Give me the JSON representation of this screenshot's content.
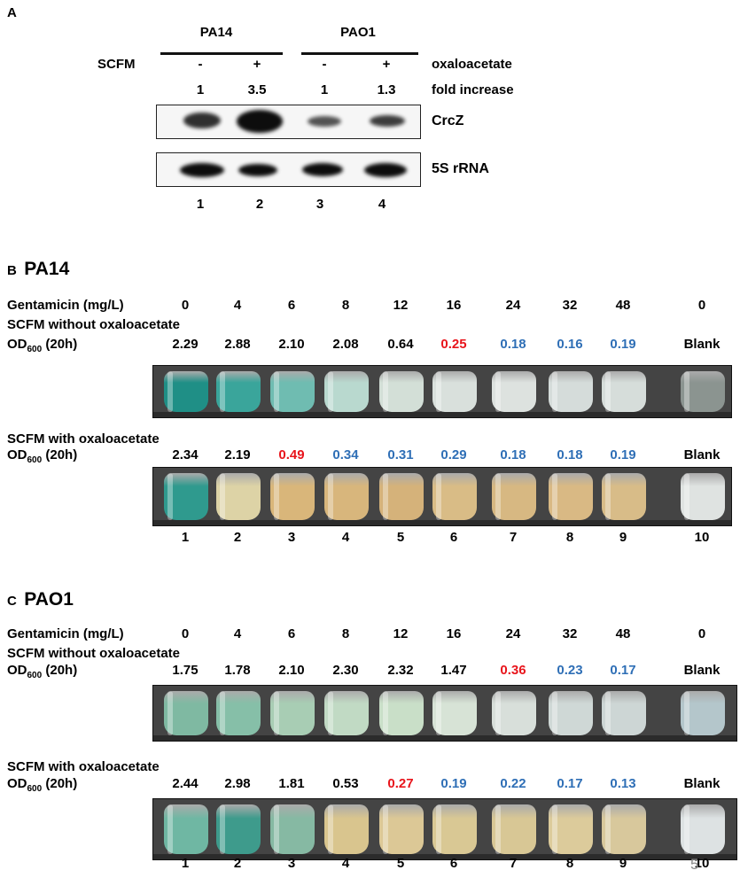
{
  "panelA": {
    "letter": "A",
    "strains": [
      "PA14",
      "PAO1"
    ],
    "scfm_label": "SCFM",
    "signs": [
      "-",
      "+",
      "-",
      "+"
    ],
    "oxaloacetate_label": "oxaloacetate",
    "folds": [
      "1",
      "3.5",
      "1",
      "1.3"
    ],
    "fold_label": "fold increase",
    "blot_labels": [
      "CrcZ",
      "5S rRNA"
    ],
    "lanes": [
      "1",
      "2",
      "3",
      "4"
    ]
  },
  "panelB": {
    "letter": "B",
    "title": "PA14",
    "gent_label": "Gentamicin (mg/L)",
    "gent_values": [
      "0",
      "4",
      "6",
      "8",
      "12",
      "16",
      "24",
      "32",
      "48",
      "0"
    ],
    "without_label": "SCFM without oxaloacetate",
    "od_label": "OD",
    "od_sub": "600",
    "od_suffix": " (20h)",
    "without_ods": [
      "2.29",
      "2.88",
      "2.10",
      "2.08",
      "0.64",
      "0.25",
      "0.18",
      "0.16",
      "0.19",
      "Blank"
    ],
    "with_label": "SCFM with oxaloacetate",
    "with_ods": [
      "2.34",
      "2.19",
      "0.49",
      "0.34",
      "0.31",
      "0.29",
      "0.18",
      "0.18",
      "0.19",
      "Blank"
    ],
    "tubes": [
      "1",
      "2",
      "3",
      "4",
      "5",
      "6",
      "7",
      "8",
      "9",
      "10"
    ]
  },
  "panelC": {
    "letter": "C",
    "title": "PAO1",
    "gent_label": "Gentamicin (mg/L)",
    "gent_values": [
      "0",
      "4",
      "6",
      "8",
      "12",
      "16",
      "24",
      "32",
      "48",
      "0"
    ],
    "without_label": "SCFM without oxaloacetate",
    "od_label": "OD",
    "od_sub": "600",
    "od_suffix": " (20h)",
    "without_ods": [
      "1.75",
      "1.78",
      "2.10",
      "2.30",
      "2.32",
      "1.47",
      "0.36",
      "0.23",
      "0.17",
      "Blank"
    ],
    "with_label": "SCFM with oxaloacetate",
    "with_ods": [
      "2.44",
      "2.98",
      "1.81",
      "0.53",
      "0.27",
      "0.19",
      "0.22",
      "0.17",
      "0.13",
      "Blank"
    ],
    "tubes": [
      "1",
      "2",
      "3",
      "4",
      "5",
      "6",
      "7",
      "8",
      "9",
      "10"
    ],
    "page_number": "5"
  },
  "colors": {
    "red": "#e8141b",
    "blue": "#2f6fb6",
    "black": "#000000"
  },
  "value_colors": {
    "panelB_without": [
      "black",
      "black",
      "black",
      "black",
      "black",
      "red",
      "blue",
      "blue",
      "blue",
      "black"
    ],
    "panelB_with": [
      "black",
      "black",
      "red",
      "blue",
      "blue",
      "blue",
      "blue",
      "blue",
      "blue",
      "black"
    ],
    "panelC_without": [
      "black",
      "black",
      "black",
      "black",
      "black",
      "black",
      "red",
      "blue",
      "blue",
      "black"
    ],
    "panelC_with": [
      "black",
      "black",
      "black",
      "black",
      "red",
      "blue",
      "blue",
      "blue",
      "blue",
      "black"
    ]
  },
  "tube_colors": {
    "panelB_without": [
      "#1f8f86",
      "#3aa59b",
      "#6fbcb1",
      "#b9d9cf",
      "#d3dfd7",
      "#d9e0dc",
      "#dde2df",
      "#d5dcda",
      "#d6ddda",
      "#8b9490"
    ],
    "panelB_with": [
      "#2f9a8e",
      "#ddd3a6",
      "#d9b67a",
      "#d8b67c",
      "#d5b27a",
      "#d9bc86",
      "#d7b882",
      "#d9b984",
      "#d8bc88",
      "#dfe3e1"
    ],
    "panelC_without": [
      "#7fb9a2",
      "#86bfa8",
      "#a8cdb4",
      "#c1dac4",
      "#c9dfc8",
      "#d7e3d6",
      "#d8dfda",
      "#cfd8d6",
      "#cdd6d5",
      "#b4c6cb"
    ],
    "panelC_with": [
      "#6fb7a3",
      "#3e9b8c",
      "#86b9a3",
      "#d9c58e",
      "#dcc896",
      "#d9c894",
      "#d8c795",
      "#dccb9b",
      "#d8c89c",
      "#dde2e3"
    ]
  }
}
